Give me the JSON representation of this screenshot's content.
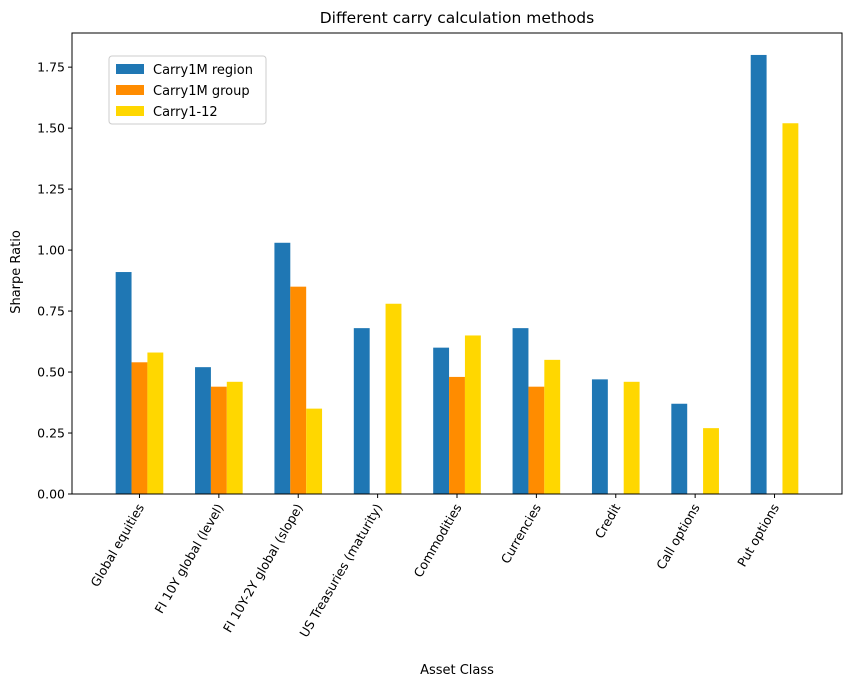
{
  "chart_data": {
    "type": "bar",
    "title": "Different carry calculation methods",
    "xlabel": "Asset Class",
    "ylabel": "Sharpe Ratio",
    "ylim": [
      0,
      1.89
    ],
    "yticks": [
      "0.00",
      "0.25",
      "0.50",
      "0.75",
      "1.00",
      "1.25",
      "1.50",
      "1.75"
    ],
    "categories": [
      "Global equities",
      "FI 10Y global (level)",
      "FI 10Y-2Y global (slope)",
      "US Treasuries (maturity)",
      "Commodities",
      "Currencies",
      "Credit",
      "Call options",
      "Put options"
    ],
    "series": [
      {
        "name": "Carry1M region",
        "color": "#1f77b4",
        "values": [
          0.91,
          0.52,
          1.03,
          0.68,
          0.6,
          0.68,
          0.47,
          0.37,
          1.8
        ]
      },
      {
        "name": "Carry1M group",
        "color": "#ff8c00",
        "values": [
          0.54,
          0.44,
          0.85,
          null,
          0.48,
          0.44,
          null,
          null,
          null
        ]
      },
      {
        "name": "Carry1-12",
        "color": "#ffd700",
        "values": [
          0.58,
          0.46,
          0.35,
          0.78,
          0.65,
          0.55,
          0.46,
          0.27,
          1.52
        ]
      }
    ],
    "grid": false,
    "legend_position": "top-left"
  }
}
